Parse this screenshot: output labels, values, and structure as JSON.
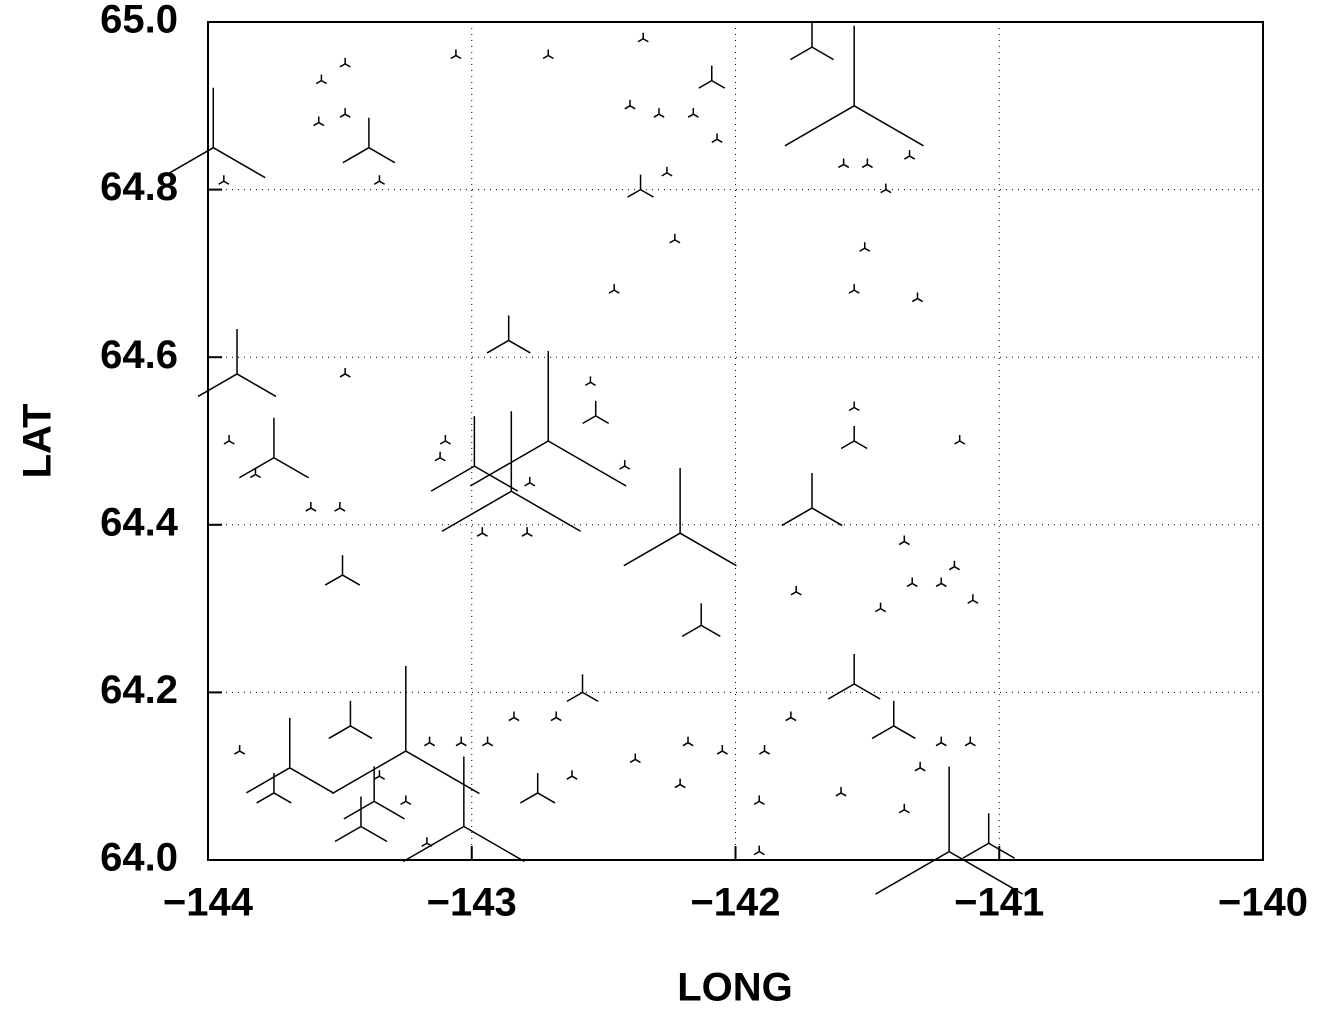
{
  "chart_data": {
    "type": "scatter",
    "x_label": "LONG",
    "y_label": "LAT",
    "x": [
      -143.98,
      -143.89,
      -141.55,
      -141.71,
      -142.21,
      -142.71,
      -142.85,
      -142.99,
      -143.25,
      -143.03,
      -141.19,
      -143.69,
      -143.39,
      -142.86,
      -143.75,
      -142.13,
      -141.55,
      -141.4,
      -141.71,
      -143.46,
      -141.04,
      -143.49,
      -142.09,
      -142.53,
      -141.55,
      -142.36,
      -142.75,
      -142.58,
      -143.75,
      -143.42,
      -143.37,
      -143.57,
      -143.48,
      -143.58,
      -143.48,
      -143.35,
      -143.94,
      -143.48,
      -143.5,
      -143.61,
      -143.92,
      -143.82,
      -143.1,
      -142.96,
      -142.79,
      -143.06,
      -142.71,
      -142.35,
      -142.4,
      -142.26,
      -142.23,
      -142.46,
      -142.29,
      -142.16,
      -142.07,
      -141.59,
      -141.5,
      -141.43,
      -141.34,
      -141.55,
      -141.31,
      -141.15,
      -141.36,
      -141.33,
      -141.22,
      -141.17,
      -141.1,
      -141.45,
      -141.77,
      -141.79,
      -141.89,
      -142.05,
      -142.18,
      -142.38,
      -142.84,
      -142.94,
      -143.04,
      -143.16,
      -143.25,
      -143.35,
      -143.88,
      -143.17,
      -142.68,
      -142.42,
      -143.12,
      -142.78,
      -141.36,
      -141.3,
      -141.22,
      -141.11,
      -141.55,
      -141.51,
      -141.91,
      -142.21,
      -141.6,
      -141.91,
      -142.62,
      -142.55
    ],
    "y": [
      64.85,
      64.58,
      64.9,
      64.42,
      64.39,
      64.5,
      64.44,
      64.47,
      64.13,
      64.04,
      64.01,
      64.11,
      64.85,
      64.62,
      64.48,
      64.28,
      64.21,
      64.16,
      64.97,
      64.16,
      64.02,
      64.34,
      64.93,
      64.53,
      64.5,
      64.8,
      64.08,
      64.2,
      64.08,
      64.04,
      64.07,
      64.93,
      64.95,
      64.88,
      64.89,
      64.81,
      64.81,
      64.58,
      64.42,
      64.42,
      64.5,
      64.46,
      64.5,
      64.39,
      64.39,
      64.96,
      64.96,
      64.98,
      64.9,
      64.82,
      64.74,
      64.68,
      64.89,
      64.89,
      64.86,
      64.83,
      64.83,
      64.8,
      64.84,
      64.68,
      64.67,
      64.5,
      64.38,
      64.33,
      64.33,
      64.35,
      64.31,
      64.3,
      64.32,
      64.17,
      64.13,
      64.13,
      64.14,
      64.12,
      64.17,
      64.14,
      64.14,
      64.14,
      64.07,
      64.1,
      64.13,
      64.02,
      64.17,
      64.47,
      64.48,
      64.45,
      64.06,
      64.11,
      64.14,
      64.14,
      64.54,
      64.73,
      64.07,
      64.09,
      64.08,
      64.01,
      64.1,
      64.57
    ],
    "sizes": [
      6,
      4.5,
      8,
      3.5,
      6.5,
      9,
      8,
      5,
      8.5,
      7,
      8.5,
      5,
      3,
      2.5,
      4,
      2.2,
      3,
      2.5,
      2.5,
      2.5,
      3,
      2,
      1.5,
      1.5,
      1.5,
      1.5,
      2,
      1.8,
      2,
      3,
      3.5,
      0.6,
      0.6,
      0.6,
      0.6,
      0.6,
      0.6,
      0.6,
      0.6,
      0.6,
      0.6,
      0.6,
      0.6,
      0.6,
      0.6,
      0.6,
      0.6,
      0.6,
      0.6,
      0.6,
      0.6,
      0.6,
      0.6,
      0.6,
      0.6,
      0.6,
      0.6,
      0.6,
      0.6,
      0.6,
      0.6,
      0.6,
      0.6,
      0.6,
      0.6,
      0.6,
      0.6,
      0.6,
      0.6,
      0.6,
      0.6,
      0.6,
      0.6,
      0.6,
      0.6,
      0.6,
      0.6,
      0.6,
      0.6,
      0.6,
      0.6,
      0.6,
      0.6,
      0.6,
      0.6,
      0.6,
      0.6,
      0.6,
      0.6,
      0.6,
      0.6,
      0.6,
      0.6,
      0.6,
      0.6,
      0.6,
      0.6,
      0.6
    ],
    "color": "#000000",
    "xlim": [
      -144,
      -140
    ],
    "xticks": [
      {
        "value": -144,
        "label": "−144"
      },
      {
        "value": -143,
        "label": "−143"
      },
      {
        "value": -142,
        "label": "−142"
      },
      {
        "value": -141,
        "label": "−141"
      },
      {
        "value": -140,
        "label": "−140"
      }
    ],
    "ylim": [
      64,
      65
    ],
    "yticks": [
      {
        "value": 64,
        "label": "64.0"
      },
      64.2,
      64.4,
      64.6,
      64.8,
      {
        "value": 65,
        "label": "65.0"
      }
    ],
    "grid": true
  }
}
